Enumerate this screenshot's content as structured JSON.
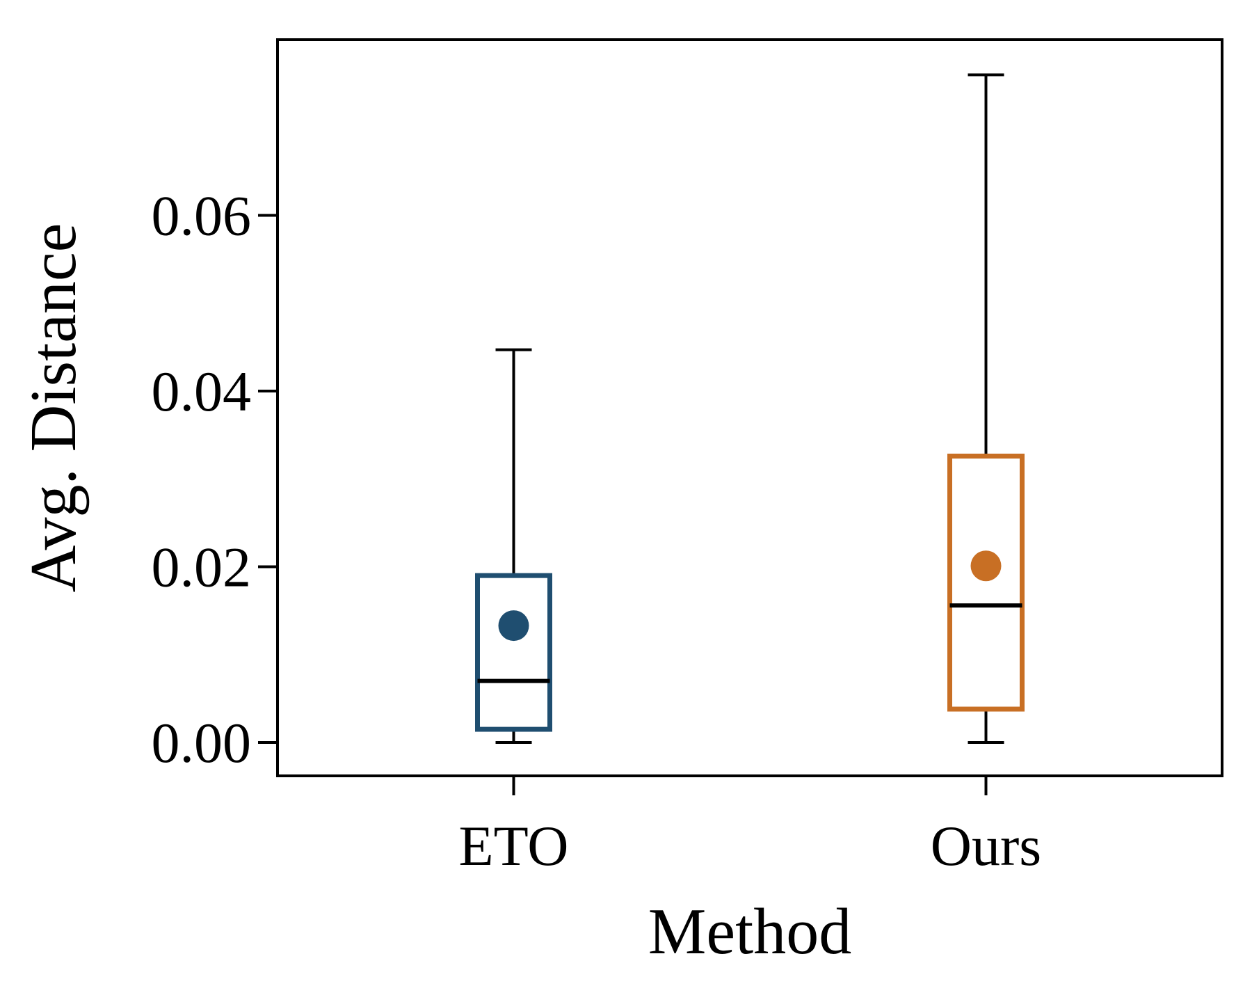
{
  "chart_data": {
    "type": "box",
    "title": "",
    "xlabel": "Method",
    "ylabel": "Avg. Distance",
    "ylim": [
      -0.0038,
      0.08
    ],
    "yticks": [
      0.0,
      0.02,
      0.04,
      0.06
    ],
    "ytick_labels": [
      "0.00",
      "0.02",
      "0.04",
      "0.06"
    ],
    "grid": false,
    "legend": "none",
    "series": [
      {
        "name": "ETO",
        "color": "#1f4e70",
        "whisker_low": 0.0,
        "q1": 0.0015,
        "median": 0.007,
        "q3": 0.019,
        "whisker_high": 0.0447,
        "mean": 0.0133
      },
      {
        "name": "Ours",
        "color": "#c86f24",
        "whisker_low": 0.0,
        "q1": 0.0038,
        "median": 0.0156,
        "q3": 0.0326,
        "whisker_high": 0.076,
        "mean": 0.0201
      }
    ]
  }
}
